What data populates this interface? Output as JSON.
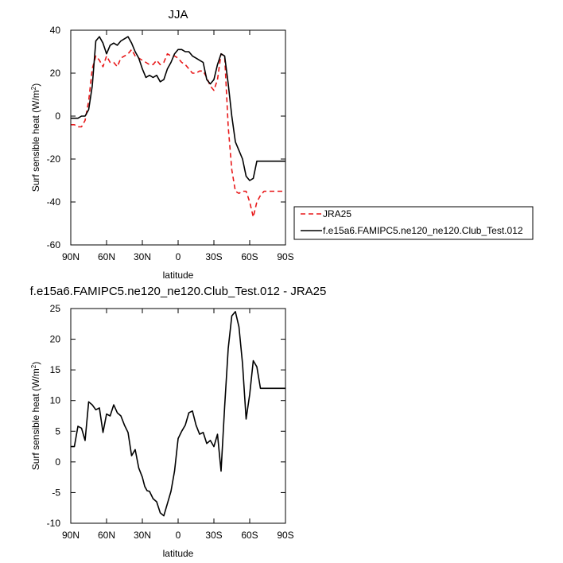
{
  "chart_data": [
    {
      "type": "line",
      "title": "JJA",
      "xlabel": "latitude",
      "ylabel": "Surf sensible heat (W/m",
      "ylabel_sup": "2",
      "ylabel_close": ")",
      "xlim": [
        90,
        -90
      ],
      "ylim": [
        -60,
        40
      ],
      "xticks": [
        90,
        60,
        30,
        0,
        -30,
        -60,
        -90
      ],
      "xtick_labels": [
        "90N",
        "60N",
        "30N",
        "0",
        "30S",
        "60S",
        "90S"
      ],
      "yticks": [
        -60,
        -40,
        -20,
        0,
        20,
        40
      ],
      "ytick_labels": [
        "-60",
        "-40",
        "-20",
        "0",
        "20",
        "40"
      ],
      "grid": false,
      "legend": "right of plot",
      "series": [
        {
          "name": "JRA25",
          "color": "#e8191a",
          "dash": "dashed",
          "x": [
            90,
            87,
            84,
            81,
            78,
            75,
            72,
            69,
            66,
            63,
            60,
            57,
            54,
            51,
            48,
            45,
            42,
            39,
            36,
            33,
            30,
            27,
            24,
            21,
            18,
            15,
            12,
            9,
            6,
            3,
            0,
            -3,
            -6,
            -9,
            -12,
            -15,
            -18,
            -21,
            -24,
            -27,
            -30,
            -33,
            -36,
            -39,
            -42,
            -45,
            -48,
            -51,
            -54,
            -57,
            -60,
            -63,
            -66,
            -69,
            -72,
            -75,
            -78,
            -81,
            -84,
            -87,
            -90
          ],
          "y": [
            -4,
            -4,
            -5,
            -5,
            -2,
            7,
            22,
            28,
            26,
            23,
            28,
            25,
            25,
            23,
            27,
            28,
            29,
            31,
            28,
            27,
            26,
            25,
            24,
            24,
            26,
            24,
            25,
            29,
            28,
            28,
            27,
            25,
            24,
            22,
            20,
            20,
            21,
            21,
            18,
            14,
            12,
            17,
            29,
            28,
            -5,
            -25,
            -35,
            -36,
            -35,
            -35,
            -40,
            -47,
            -40,
            -37,
            -35,
            -35,
            -35,
            -35,
            -35,
            -35,
            -35
          ]
        },
        {
          "name": "f.e15a6.FAMIPC5.ne120_ne120.Club_Test.012",
          "color": "#000000",
          "dash": "solid",
          "x": [
            90,
            87,
            84,
            81,
            78,
            75,
            72,
            69,
            66,
            63,
            60,
            57,
            54,
            51,
            48,
            45,
            42,
            39,
            36,
            33,
            30,
            27,
            24,
            21,
            18,
            15,
            12,
            9,
            6,
            3,
            0,
            -3,
            -6,
            -9,
            -12,
            -15,
            -18,
            -21,
            -24,
            -27,
            -30,
            -33,
            -36,
            -39,
            -42,
            -45,
            -48,
            -51,
            -54,
            -57,
            -60,
            -63,
            -66,
            -69,
            -72,
            -75,
            -78,
            -81,
            -84,
            -87,
            -90
          ],
          "y": [
            -1,
            -1,
            -1,
            0,
            0,
            3,
            14,
            35,
            37,
            34,
            29,
            33,
            34,
            33,
            35,
            36,
            37,
            34,
            30,
            27,
            22,
            18,
            19,
            18,
            19,
            16,
            17,
            22,
            25,
            29,
            31,
            31,
            30,
            30,
            28,
            27,
            26,
            25,
            17,
            15,
            17,
            24,
            29,
            28,
            15,
            0,
            -12,
            -16,
            -20,
            -28,
            -30,
            -29,
            -21,
            -21,
            -21,
            -21,
            -21,
            -21,
            -21,
            -21,
            -21
          ]
        }
      ]
    },
    {
      "type": "line",
      "title": "f.e15a6.FAMIPC5.ne120_ne120.Club_Test.012 - JRA25",
      "xlabel": "latitude",
      "ylabel": "Surf sensible heat (W/m",
      "ylabel_sup": "2",
      "ylabel_close": ")",
      "xlim": [
        90,
        -90
      ],
      "ylim": [
        -10,
        25
      ],
      "xticks": [
        90,
        60,
        30,
        0,
        -30,
        -60,
        -90
      ],
      "xtick_labels": [
        "90N",
        "60N",
        "30N",
        "0",
        "30S",
        "60S",
        "90S"
      ],
      "yticks": [
        -10,
        -5,
        0,
        5,
        10,
        15,
        20,
        25
      ],
      "ytick_labels": [
        "-10",
        "-5",
        "0",
        "5",
        "10",
        "15",
        "20",
        "25"
      ],
      "grid": false,
      "series": [
        {
          "color": "#000000",
          "dash": "solid",
          "x": [
            90,
            87,
            84,
            81,
            78,
            75,
            72,
            69,
            66,
            63,
            60,
            57,
            54,
            51,
            48,
            45,
            42,
            39,
            36,
            33,
            30,
            28,
            26,
            24,
            21,
            18,
            15,
            12,
            9,
            6,
            3,
            0,
            -3,
            -6,
            -9,
            -12,
            -15,
            -18,
            -21,
            -24,
            -27,
            -30,
            -33,
            -36,
            -39,
            -42,
            -45,
            -48,
            -51,
            -54,
            -57,
            -60,
            -63,
            -66,
            -69,
            -72,
            -75,
            -78,
            -81,
            -84,
            -87,
            -90
          ],
          "y": [
            2.5,
            2.5,
            5.8,
            5.5,
            3.5,
            9.8,
            9.3,
            8.5,
            8.8,
            4.8,
            7.8,
            7.5,
            9.3,
            8.0,
            7.5,
            6.0,
            4.8,
            1.0,
            2.0,
            -1.0,
            -2.5,
            -4.0,
            -4.7,
            -4.8,
            -6.0,
            -6.5,
            -8.3,
            -8.8,
            -6.8,
            -4.8,
            -1.5,
            3.8,
            5.0,
            6.0,
            8.0,
            8.3,
            6.0,
            4.5,
            4.8,
            3.0,
            3.5,
            2.5,
            4.5,
            -1.5,
            9.0,
            18.5,
            23.8,
            24.5,
            22.0,
            16.0,
            7.0,
            11.0,
            16.5,
            15.5,
            12.0,
            12.0,
            12.0,
            12.0,
            12.0,
            12.0,
            12.0,
            12.0
          ]
        }
      ]
    }
  ]
}
